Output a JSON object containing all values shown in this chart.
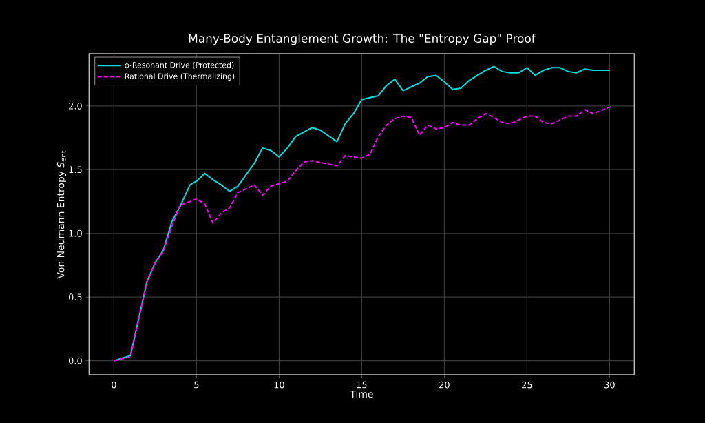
{
  "chart_data": {
    "type": "line",
    "title": "Many-Body Entanglement Growth: The \"Entropy Gap\" Proof",
    "xlabel": "Time",
    "ylabel": "Von Neumann Entropy *S*$_{ent}$",
    "xlim": [
      -1.5,
      31.5
    ],
    "ylim": [
      -0.11,
      2.41
    ],
    "xticks": [
      0,
      5,
      10,
      15,
      20,
      25,
      30
    ],
    "yticks": [
      {
        "value": 0,
        "label": "0.0"
      },
      {
        "value": 0.5,
        "label": "0.5"
      },
      {
        "value": 1,
        "label": "1.0"
      },
      {
        "value": 1.5,
        "label": "1.5"
      },
      {
        "value": 2,
        "label": "2.0"
      }
    ],
    "grid": true,
    "legend": "top left",
    "series": [
      {
        "name": "ϕ-Resonant Drive (Protected)",
        "color": "#00e0e0",
        "line_style": "solid",
        "x": [
          0,
          1,
          2,
          2.5,
          3,
          3.5,
          4,
          4.6,
          5,
          5.5,
          6,
          6.5,
          7,
          7.5,
          8.5,
          9,
          9.5,
          10,
          10.5,
          11,
          12,
          12.5,
          13.5,
          14,
          14.5,
          15,
          16,
          16.5,
          17,
          17.5,
          18,
          18.5,
          19,
          19.5,
          20,
          20.5,
          21,
          21.5,
          22,
          22.5,
          23,
          23.5,
          24,
          24.5,
          25,
          25.5,
          26,
          26.5,
          27,
          27.5,
          28,
          28.5,
          29,
          30
        ],
        "values": [
          0,
          0.04,
          0.62,
          0.77,
          0.87,
          1.09,
          1.21,
          1.38,
          1.41,
          1.47,
          1.42,
          1.38,
          1.33,
          1.37,
          1.55,
          1.67,
          1.65,
          1.6,
          1.67,
          1.76,
          1.83,
          1.81,
          1.72,
          1.86,
          1.94,
          2.05,
          2.08,
          2.16,
          2.21,
          2.12,
          2.15,
          2.18,
          2.23,
          2.24,
          2.19,
          2.13,
          2.14,
          2.2,
          2.24,
          2.28,
          2.31,
          2.27,
          2.26,
          2.26,
          2.3,
          2.24,
          2.28,
          2.3,
          2.3,
          2.27,
          2.26,
          2.29,
          2.28,
          2.28
        ]
      },
      {
        "name": "Rational Drive (Thermalizing)",
        "color": "#ff00ff",
        "line_style": "dashed",
        "x": [
          0,
          1,
          2,
          2.5,
          3,
          3.5,
          4,
          5,
          5.5,
          6,
          6.5,
          7,
          7.5,
          8.5,
          9,
          9.5,
          10.5,
          11,
          11.5,
          12,
          13.5,
          14,
          15,
          15.5,
          16,
          16.5,
          17,
          17.5,
          18,
          18.5,
          19,
          19.5,
          20,
          20.5,
          21,
          21.5,
          22,
          22.5,
          23,
          23.5,
          24,
          24.5,
          25,
          25.5,
          26,
          26.5,
          27,
          27.5,
          28,
          28.5,
          29,
          30
        ],
        "values": [
          0,
          0.03,
          0.62,
          0.77,
          0.86,
          1.05,
          1.22,
          1.27,
          1.23,
          1.08,
          1.16,
          1.2,
          1.32,
          1.38,
          1.3,
          1.37,
          1.41,
          1.49,
          1.56,
          1.57,
          1.53,
          1.61,
          1.59,
          1.62,
          1.76,
          1.85,
          1.9,
          1.92,
          1.91,
          1.77,
          1.85,
          1.82,
          1.83,
          1.87,
          1.85,
          1.85,
          1.9,
          1.94,
          1.91,
          1.87,
          1.86,
          1.89,
          1.92,
          1.92,
          1.87,
          1.86,
          1.89,
          1.92,
          1.92,
          1.97,
          1.94,
          1.99
        ]
      }
    ]
  }
}
